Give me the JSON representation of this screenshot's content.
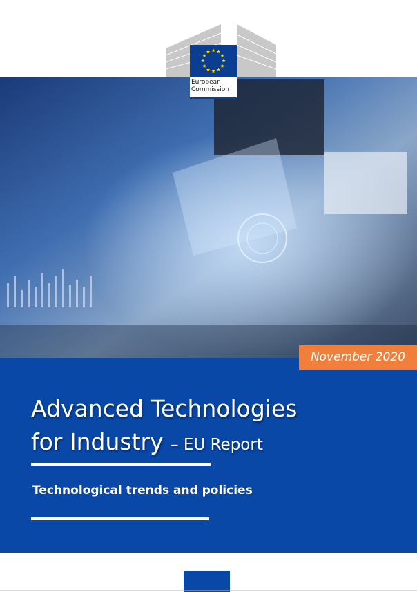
{
  "logo": {
    "lines": [
      "European",
      "Commission"
    ]
  },
  "date": "November 2020",
  "title": {
    "line1": "Advanced Technologies",
    "line2": "for Industry",
    "suffix": "– EU Report"
  },
  "subtitle": "Technological trends and policies"
}
